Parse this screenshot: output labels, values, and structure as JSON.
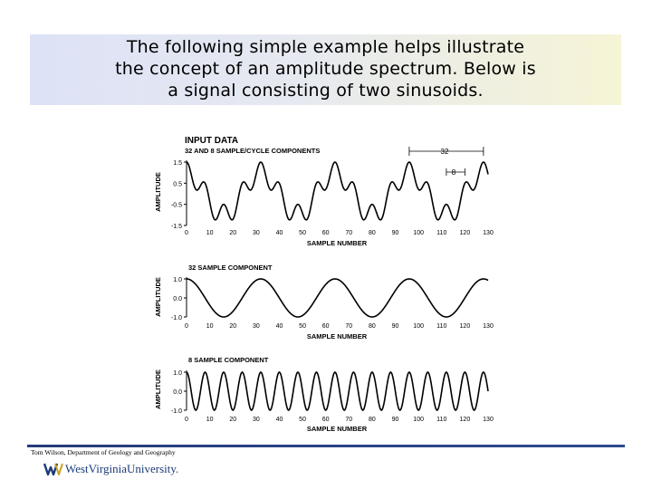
{
  "slide": {
    "title_lines": [
      "The following simple example helps illustrate",
      "the concept of an amplitude spectrum. Below is",
      "a signal consisting of two sinusoids."
    ],
    "author": "Tom Wilson, Department of Geology and Geography",
    "logo_text": "WestVirginiaUniversity.",
    "colors": {
      "footer_rule": "#243b7a",
      "logo": "#1b3a78"
    }
  },
  "figure": {
    "panel1": {
      "title": "INPUT DATA",
      "subtitle": "32 AND 8 SAMPLE/CYCLE COMPONENTS",
      "ylabel": "AMPLITUDE",
      "xlabel": "SAMPLE NUMBER",
      "yticks": [
        "1.5",
        "0.5",
        "-0.5",
        "-1.5"
      ],
      "xticks": [
        "0",
        "10",
        "20",
        "30",
        "40",
        "50",
        "60",
        "70",
        "80",
        "90",
        "100",
        "110",
        "120",
        "130"
      ],
      "annot_long": "32",
      "annot_short": "8"
    },
    "panel2": {
      "title": "32 SAMPLE COMPONENT",
      "ylabel": "AMPLITUDE",
      "xlabel": "SAMPLE NUMBER",
      "yticks": [
        "1.0",
        "0.0",
        "-1.0"
      ],
      "xticks": [
        "0",
        "10",
        "20",
        "30",
        "40",
        "50",
        "60",
        "70",
        "80",
        "90",
        "100",
        "110",
        "120",
        "130"
      ]
    },
    "panel3": {
      "title": "8 SAMPLE COMPONENT",
      "ylabel": "AMPLITUDE",
      "xlabel": "SAMPLE NUMBER",
      "yticks": [
        "1.0",
        "0.0",
        "-1.0"
      ],
      "xticks": [
        "0",
        "10",
        "20",
        "30",
        "40",
        "50",
        "60",
        "70",
        "80",
        "90",
        "100",
        "110",
        "120",
        "130"
      ]
    }
  },
  "chart_data": [
    {
      "type": "line",
      "title": "INPUT DATA",
      "subtitle": "32 AND 8 SAMPLE/CYCLE COMPONENTS",
      "xlabel": "SAMPLE NUMBER",
      "ylabel": "AMPLITUDE",
      "xlim": [
        0,
        130
      ],
      "ylim": [
        -1.5,
        1.5
      ],
      "series": [
        {
          "components": [
            {
              "period": 32,
              "amplitude": 1.0
            },
            {
              "period": 8,
              "amplitude": 0.5
            }
          ]
        }
      ]
    },
    {
      "type": "line",
      "title": "32 SAMPLE COMPONENT",
      "xlabel": "SAMPLE NUMBER",
      "ylabel": "AMPLITUDE",
      "xlim": [
        0,
        130
      ],
      "ylim": [
        -1.0,
        1.0
      ],
      "series": [
        {
          "period": 32,
          "amplitude": 1.0
        }
      ]
    },
    {
      "type": "line",
      "title": "8 SAMPLE COMPONENT",
      "xlabel": "SAMPLE NUMBER",
      "ylabel": "AMPLITUDE",
      "xlim": [
        0,
        130
      ],
      "ylim": [
        -1.0,
        1.0
      ],
      "series": [
        {
          "period": 8,
          "amplitude": 1.0
        }
      ]
    }
  ]
}
